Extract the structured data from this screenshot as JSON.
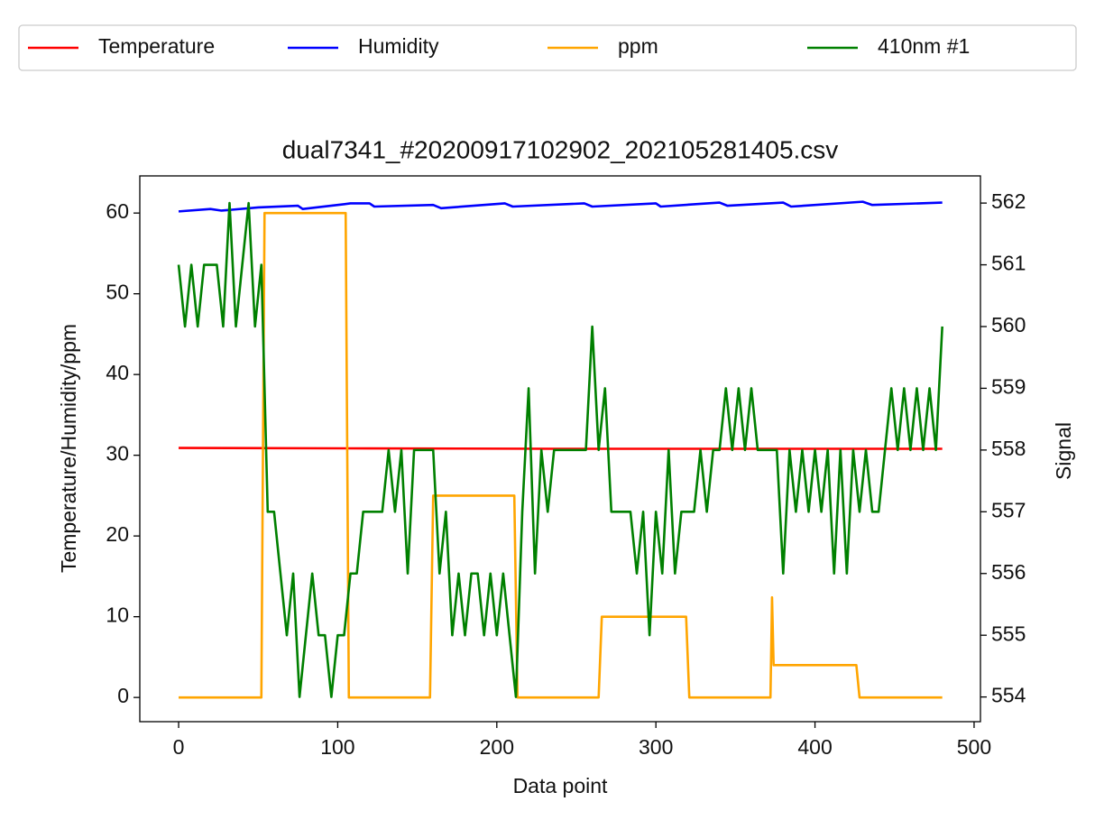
{
  "chart_data": {
    "type": "line",
    "title": "dual7341_#20200917102902_202105281405.csv",
    "x_label": "Data point",
    "y_label": "Temperature/Humidity/ppm",
    "y2_label": "Signal",
    "xlim": [
      -24.4,
      504
    ],
    "xticks": [
      0,
      100,
      200,
      300,
      400,
      500
    ],
    "ylim": [
      -3,
      64.6
    ],
    "yticks": [
      0,
      10,
      20,
      30,
      40,
      50,
      60
    ],
    "y2lim": [
      553.6,
      562.44
    ],
    "y2ticks": [
      554,
      555,
      556,
      557,
      558,
      559,
      560,
      561,
      562
    ],
    "grid": false,
    "legend_loc": "upper center",
    "series": [
      {
        "name": "Temperature",
        "color": "#ff0000",
        "x": [
          0,
          120,
          240,
          360,
          480
        ],
        "values": [
          30.9,
          30.85,
          30.8,
          30.8,
          30.8
        ]
      },
      {
        "name": "Humidity",
        "color": "#0000ff",
        "x": [
          0,
          20,
          27,
          50,
          75,
          78,
          100,
          108,
          120,
          123,
          160,
          165,
          205,
          210,
          255,
          260,
          300,
          303,
          340,
          345,
          380,
          385,
          430,
          436,
          480
        ],
        "values": [
          60.2,
          60.5,
          60.3,
          60.7,
          60.9,
          60.5,
          61.0,
          61.2,
          61.2,
          60.8,
          61.0,
          60.6,
          61.2,
          60.8,
          61.2,
          60.8,
          61.2,
          60.8,
          61.3,
          60.9,
          61.3,
          60.8,
          61.4,
          61.0,
          61.3
        ]
      },
      {
        "name": "ppm",
        "color": "#ffa500",
        "x": [
          0,
          52,
          54,
          105,
          107,
          158,
          160,
          211,
          213,
          264,
          266,
          319,
          321,
          372,
          373,
          374,
          426,
          428,
          480
        ],
        "values": [
          0,
          0,
          60,
          60,
          0,
          0,
          25,
          25,
          0,
          0,
          10,
          10,
          0,
          0,
          12.4,
          4,
          4,
          0,
          0
        ]
      },
      {
        "name": "410nm #1",
        "color": "#008000",
        "axis": "y2",
        "x": [
          0,
          4,
          8,
          12,
          16,
          20,
          24,
          28,
          32,
          36,
          40,
          44,
          48,
          52,
          56,
          60,
          64,
          68,
          72,
          76,
          80,
          84,
          88,
          92,
          96,
          100,
          104,
          108,
          112,
          116,
          120,
          124,
          128,
          132,
          136,
          140,
          144,
          148,
          152,
          156,
          160,
          164,
          168,
          172,
          176,
          180,
          184,
          188,
          192,
          196,
          200,
          204,
          208,
          212,
          216,
          220,
          224,
          228,
          232,
          236,
          240,
          244,
          248,
          252,
          256,
          260,
          264,
          268,
          272,
          276,
          280,
          284,
          288,
          292,
          296,
          300,
          304,
          308,
          312,
          316,
          320,
          324,
          328,
          332,
          336,
          340,
          344,
          348,
          352,
          356,
          360,
          364,
          368,
          372,
          376,
          380,
          384,
          388,
          392,
          396,
          400,
          404,
          408,
          412,
          416,
          420,
          424,
          428,
          432,
          436,
          440,
          444,
          448,
          452,
          456,
          460,
          464,
          468,
          472,
          476,
          480
        ],
        "values": [
          561,
          560,
          561,
          560,
          561,
          561,
          561,
          560,
          562,
          560,
          561,
          562,
          560,
          561,
          557,
          557,
          556,
          555,
          556,
          554,
          555,
          556,
          555,
          555,
          554,
          555,
          555,
          556,
          556,
          557,
          557,
          557,
          557,
          558,
          557,
          558,
          556,
          558,
          558,
          558,
          558,
          556,
          557,
          555,
          556,
          555,
          556,
          556,
          555,
          556,
          555,
          556,
          555,
          554,
          557,
          559,
          556,
          558,
          557,
          558,
          558,
          558,
          558,
          558,
          558,
          560,
          558,
          559,
          557,
          557,
          557,
          557,
          556,
          557,
          555,
          557,
          556,
          558,
          556,
          557,
          557,
          557,
          558,
          557,
          558,
          558,
          559,
          558,
          559,
          558,
          559,
          558,
          558,
          558,
          558,
          556,
          558,
          557,
          558,
          557,
          558,
          557,
          558,
          556,
          558,
          556,
          558,
          557,
          558,
          557,
          557,
          558,
          559,
          558,
          559,
          558,
          559,
          558,
          559,
          558,
          560
        ]
      }
    ]
  }
}
